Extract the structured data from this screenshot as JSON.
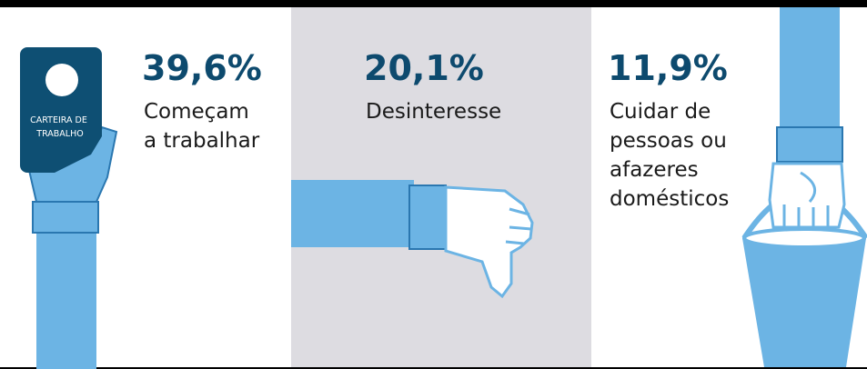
{
  "card": {
    "lines": [
      "CARTEIRA DE",
      "TRABALHO"
    ]
  },
  "panels": [
    {
      "value": "39,6%",
      "lines": [
        "Começam",
        "a trabalhar"
      ]
    },
    {
      "value": "20,1%",
      "lines": [
        "Desinteresse"
      ]
    },
    {
      "value": "11,9%",
      "lines": [
        "Cuidar de",
        "pessoas ou",
        "afazeres",
        "domésticos"
      ]
    }
  ]
}
